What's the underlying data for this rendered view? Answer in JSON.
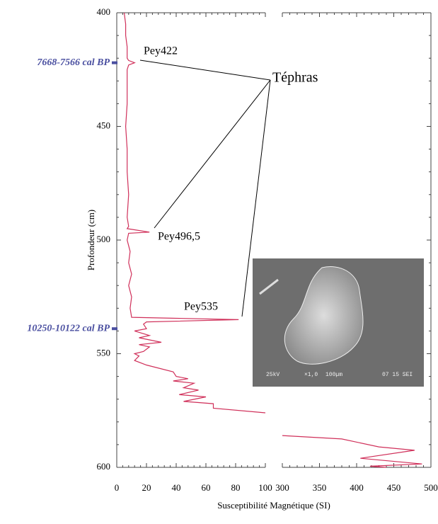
{
  "chart_data": {
    "type": "line",
    "ylabel": "Profondeur (cm)",
    "xlabel": "Susceptibilité Magnétique (SI)",
    "ylim": [
      400,
      600
    ],
    "yticks": [
      400,
      450,
      500,
      550,
      600
    ],
    "xlim": [
      0,
      100
    ],
    "xticks": [
      0,
      20,
      40,
      60,
      80,
      100
    ],
    "x2lim": [
      300,
      500
    ],
    "x2ticks": [
      300,
      350,
      400,
      450,
      500
    ],
    "color": "#d0305a",
    "series": [
      {
        "panel": "x",
        "x": [
          5,
          6,
          6,
          7,
          7,
          8,
          12,
          8,
          7,
          7,
          6,
          7,
          7,
          8,
          7,
          8,
          7,
          22,
          8,
          7,
          9,
          8,
          10,
          8,
          10,
          9,
          10,
          82,
          20,
          18,
          20,
          12,
          22,
          15,
          30,
          15,
          22,
          18,
          12,
          15,
          12,
          20,
          38,
          40,
          48,
          38,
          52,
          45,
          55,
          42,
          60,
          45,
          65,
          65,
          100
        ],
        "y": [
          400,
          405,
          410,
          415,
          420,
          421,
          422,
          423,
          425,
          440,
          450,
          460,
          470,
          480,
          490,
          494,
          495,
          496.5,
          497,
          500,
          505,
          510,
          515,
          520,
          525,
          530,
          534,
          535,
          536,
          537,
          539,
          540,
          542,
          543,
          545,
          546,
          547,
          549,
          550,
          551,
          553,
          555,
          558,
          560,
          561,
          562,
          563,
          565,
          566,
          568,
          569,
          571,
          572,
          574,
          576
        ]
      },
      {
        "panel": "x2",
        "x": [
          300,
          380,
          430,
          478,
          405,
          488,
          418,
          440
        ],
        "y": [
          586,
          587.5,
          591,
          592.5,
          596,
          598.5,
          599.5,
          600
        ]
      }
    ],
    "dates": [
      {
        "label": "7668-7566 cal BP",
        "depth": 422
      },
      {
        "label": "10250-10122 cal BP",
        "depth": 539
      }
    ],
    "samples": [
      "Pey422",
      "Pey496,5",
      "Pey535"
    ],
    "tephra_label": "Téphras",
    "image_caption": [
      "25kV",
      "×1,0",
      "100µm",
      "07 15 SEI"
    ]
  }
}
